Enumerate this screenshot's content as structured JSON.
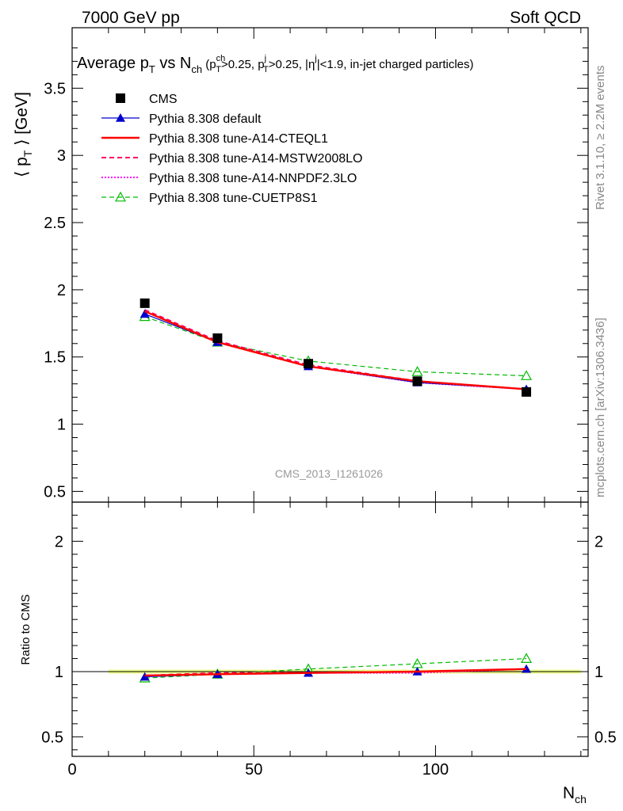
{
  "header": {
    "energy_label": "7000 GeV pp",
    "process_label": "Soft QCD"
  },
  "title": {
    "main": "Average p",
    "main_sub": "T",
    "vs": " vs N",
    "vs_sub": "ch",
    "cuts_open": " (p",
    "cut1_sup": "ch",
    "cut1_sub": "T",
    "cut1_val": ">0.25, p",
    "cut2_sup": "j",
    "cut2_sub": "T",
    "cut2_val": ">0.25, |η",
    "cut3_sup": "j",
    "cut3_val": "|<1.9, in-jet charged particles)"
  },
  "side_labels": {
    "rivet": "Rivet 3.1.10, ≥ 2.2M events",
    "mcplots": "mcplots.cern.ch [arXiv:1306.3436]"
  },
  "watermark": "CMS_2013_I1261026",
  "axes": {
    "main_ylabel_open": "⟨ p",
    "main_ylabel_sub": "T",
    "main_ylabel_close": " ⟩ [GeV]",
    "ratio_ylabel": "Ratio to CMS",
    "xlabel_main": "N",
    "xlabel_sub": "ch"
  },
  "colors": {
    "cms": "#000000",
    "default": "#0000cc",
    "cteql1": "#ff0000",
    "mstw": "#ff0066",
    "nnpdf": "#ff00ff",
    "cuetp8s1": "#00bb00",
    "band": "#eeff88"
  },
  "chart_data": {
    "type": "line",
    "x_range": [
      0,
      142
    ],
    "main_ylim": [
      0.42,
      3.95
    ],
    "ratio_ylim": [
      0.35,
      2.3
    ],
    "x_ticks": [
      0,
      50,
      100
    ],
    "main_y_ticks": [
      "0.5",
      "1",
      "1.5",
      "2",
      "2.5",
      "3",
      "3.5"
    ],
    "ratio_y_ticks": [
      "0.5",
      "1",
      "2"
    ],
    "x": [
      20,
      40,
      65,
      95,
      125
    ],
    "series": [
      {
        "name": "CMS",
        "key": "cms",
        "values": [
          1.9,
          1.64,
          1.45,
          1.32,
          1.24
        ],
        "ratio": [
          1.0,
          1.0,
          1.0,
          1.0,
          1.0
        ]
      },
      {
        "name": "Pythia 8.308 default",
        "key": "default",
        "values": [
          1.82,
          1.61,
          1.43,
          1.31,
          1.26
        ],
        "ratio": [
          0.96,
          0.98,
          0.99,
          1.0,
          1.02
        ]
      },
      {
        "name": "Pythia 8.308 tune-A14-CTEQL1",
        "key": "cteql1",
        "values": [
          1.84,
          1.61,
          1.43,
          1.32,
          1.26
        ],
        "ratio": [
          0.97,
          0.98,
          0.99,
          1.0,
          1.02
        ]
      },
      {
        "name": "Pythia 8.308 tune-A14-MSTW2008LO",
        "key": "mstw",
        "values": [
          1.85,
          1.62,
          1.44,
          1.32,
          1.26
        ],
        "ratio": [
          0.97,
          0.99,
          0.99,
          1.0,
          1.02
        ]
      },
      {
        "name": "Pythia 8.308 tune-A14-NNPDF2.3LO",
        "key": "nnpdf",
        "values": [
          1.84,
          1.61,
          1.43,
          1.31,
          1.26
        ],
        "ratio": [
          0.97,
          0.98,
          0.99,
          0.99,
          1.02
        ]
      },
      {
        "name": "Pythia 8.308 tune-CUETP8S1",
        "key": "cuetp8s1",
        "values": [
          1.8,
          1.61,
          1.47,
          1.39,
          1.36
        ],
        "ratio": [
          0.95,
          0.98,
          1.02,
          1.06,
          1.1
        ]
      }
    ]
  }
}
